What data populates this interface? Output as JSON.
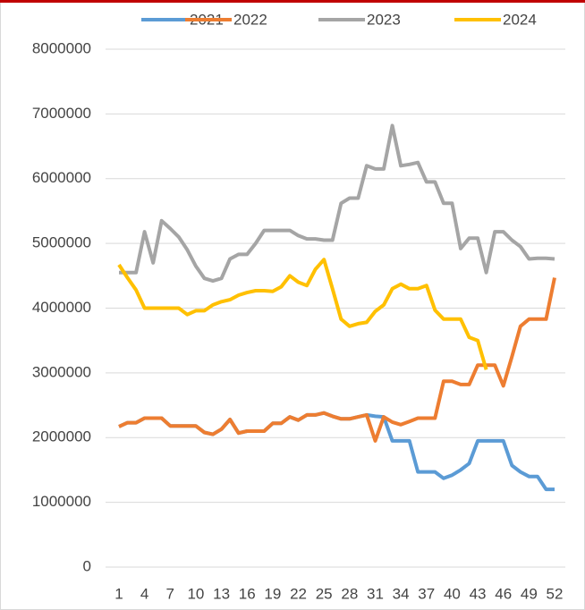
{
  "chart_data": {
    "type": "line",
    "categories": [
      "1",
      null,
      null,
      "4",
      null,
      null,
      "7",
      null,
      null,
      "10",
      null,
      null,
      "13",
      null,
      null,
      "16",
      null,
      null,
      "19",
      null,
      null,
      "22",
      null,
      null,
      "25",
      null,
      null,
      "28",
      null,
      null,
      "31",
      null,
      null,
      "34",
      null,
      null,
      "37",
      null,
      null,
      "40",
      null,
      null,
      "43",
      null,
      null,
      "46",
      null,
      null,
      "49",
      null,
      null,
      "52"
    ],
    "series": [
      {
        "name": "2021",
        "color": "#5b9bd5",
        "values": [
          2170000,
          2230000,
          2230000,
          2300000,
          2300000,
          2300000,
          2180000,
          2180000,
          2180000,
          2180000,
          2080000,
          2050000,
          2130000,
          2280000,
          2070000,
          2100000,
          2100000,
          2100000,
          2220000,
          2220000,
          2320000,
          2270000,
          2350000,
          2350000,
          2380000,
          2330000,
          2290000,
          2290000,
          2320000,
          2350000,
          2330000,
          2320000,
          1950000,
          1950000,
          1950000,
          1470000,
          1470000,
          1470000,
          1370000,
          1420000,
          1500000,
          1600000,
          1950000,
          1950000,
          1950000,
          1950000,
          1570000,
          1470000,
          1400000,
          1400000,
          1200000,
          1200000
        ]
      },
      {
        "name": "2022",
        "color": "#ed7d31",
        "values": [
          2170000,
          2230000,
          2230000,
          2300000,
          2300000,
          2300000,
          2180000,
          2180000,
          2180000,
          2180000,
          2080000,
          2050000,
          2130000,
          2280000,
          2070000,
          2100000,
          2100000,
          2100000,
          2220000,
          2220000,
          2320000,
          2270000,
          2350000,
          2350000,
          2380000,
          2330000,
          2290000,
          2290000,
          2320000,
          2350000,
          1950000,
          2320000,
          2240000,
          2200000,
          2250000,
          2300000,
          2300000,
          2300000,
          2870000,
          2870000,
          2820000,
          2820000,
          3120000,
          3120000,
          3120000,
          2800000,
          3250000,
          3720000,
          3830000,
          3830000,
          3830000,
          4470000
        ]
      },
      {
        "name": "2023",
        "color": "#a5a5a5",
        "values": [
          4550000,
          4550000,
          4550000,
          5180000,
          4700000,
          5350000,
          5230000,
          5100000,
          4900000,
          4650000,
          4460000,
          4420000,
          4460000,
          4760000,
          4830000,
          4830000,
          5000000,
          5200000,
          5200000,
          5200000,
          5200000,
          5120000,
          5070000,
          5070000,
          5050000,
          5050000,
          5620000,
          5700000,
          5700000,
          6200000,
          6150000,
          6150000,
          6820000,
          6200000,
          6220000,
          6250000,
          5950000,
          5950000,
          5620000,
          5620000,
          4920000,
          5080000,
          5080000,
          4550000,
          5180000,
          5180000,
          5050000,
          4950000,
          4760000,
          4770000,
          4770000,
          4760000
        ]
      },
      {
        "name": "2024",
        "color": "#ffc000",
        "values": [
          4670000,
          4470000,
          4280000,
          4000000,
          4000000,
          4000000,
          4000000,
          4000000,
          3900000,
          3960000,
          3960000,
          4050000,
          4100000,
          4130000,
          4200000,
          4240000,
          4270000,
          4270000,
          4260000,
          4330000,
          4500000,
          4400000,
          4350000,
          4600000,
          4750000,
          4300000,
          3830000,
          3720000,
          3760000,
          3780000,
          3950000,
          4050000,
          4300000,
          4370000,
          4300000,
          4300000,
          4350000,
          3970000,
          3830000,
          3830000,
          3830000,
          3550000,
          3500000,
          3050000,
          null,
          null,
          null,
          null,
          null,
          null,
          null,
          null
        ]
      }
    ],
    "ylim": [
      0,
      8000000
    ],
    "yticks": [
      0,
      1000000,
      2000000,
      3000000,
      4000000,
      5000000,
      6000000,
      7000000,
      8000000
    ],
    "grid": true,
    "legend": "top"
  }
}
